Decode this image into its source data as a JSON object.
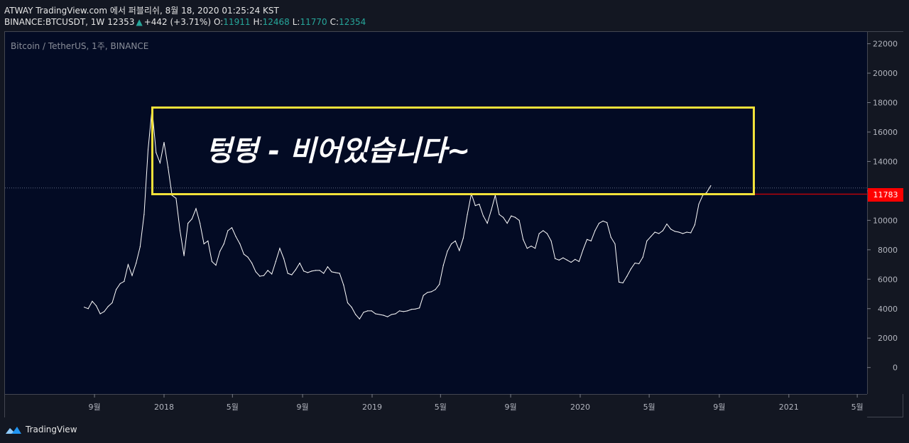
{
  "header": {
    "line1": "ATWAY TradingView.com 에서 퍼블리쉬, 8월 18, 2020 01:25:24 KST",
    "symbol": "BINANCE:BTCUSDT, 1W",
    "last": "12353",
    "change_arrow": "▲",
    "change": "+442 (+3.71%)",
    "o_label": "O:",
    "o_value": "11911",
    "h_label": "H:",
    "h_value": "12468",
    "l_label": "L:",
    "l_value": "11770",
    "c_label": "C:",
    "c_value": "12354"
  },
  "chart_label": "Bitcoin / TetherUS, 1주, BINANCE",
  "annotation": "텅텅 - 비어있습니다~",
  "price_tag": "11783",
  "brand": "TradingView",
  "colors": {
    "background": "#030b24",
    "line": "#ffffff",
    "annotation_box": "#f2e13a",
    "price_tag": "#ff0000",
    "up": "#26a69a"
  },
  "chart_data": {
    "type": "line",
    "title": "Bitcoin / TetherUS, 1주, BINANCE",
    "ylim": [
      -1800,
      22800
    ],
    "yticks": [
      0,
      2000,
      4000,
      6000,
      8000,
      10000,
      12000,
      14000,
      16000,
      18000,
      20000,
      22000
    ],
    "xticks": [
      {
        "label": "9월",
        "x": "2017-09"
      },
      {
        "label": "2018",
        "x": "2018-01"
      },
      {
        "label": "5월",
        "x": "2018-05"
      },
      {
        "label": "9월",
        "x": "2018-09"
      },
      {
        "label": "2019",
        "x": "2019-01"
      },
      {
        "label": "5월",
        "x": "2019-05"
      },
      {
        "label": "9월",
        "x": "2019-09"
      },
      {
        "label": "2020",
        "x": "2020-01"
      },
      {
        "label": "5월",
        "x": "2020-05"
      },
      {
        "label": "9월",
        "x": "2020-09"
      },
      {
        "label": "2021",
        "x": "2021-01"
      },
      {
        "label": "5월",
        "x": "2021-05"
      }
    ],
    "grid": false,
    "series": [
      {
        "values": [
          [
            "2017-08-14",
            4100
          ],
          [
            "2017-08-21",
            4000
          ],
          [
            "2017-08-28",
            4500
          ],
          [
            "2017-09-04",
            4200
          ],
          [
            "2017-09-11",
            3650
          ],
          [
            "2017-09-18",
            3800
          ],
          [
            "2017-09-25",
            4150
          ],
          [
            "2017-10-02",
            4400
          ],
          [
            "2017-10-09",
            5300
          ],
          [
            "2017-10-16",
            5700
          ],
          [
            "2017-10-23",
            5850
          ],
          [
            "2017-10-30",
            7000
          ],
          [
            "2017-11-06",
            6250
          ],
          [
            "2017-11-13",
            7100
          ],
          [
            "2017-11-20",
            8200
          ],
          [
            "2017-11-27",
            10400
          ],
          [
            "2017-12-04",
            14800
          ],
          [
            "2017-12-11",
            17600
          ],
          [
            "2017-12-18",
            14600
          ],
          [
            "2017-12-25",
            13900
          ],
          [
            "2018-01-01",
            15300
          ],
          [
            "2018-01-08",
            13600
          ],
          [
            "2018-01-15",
            11700
          ],
          [
            "2018-01-22",
            11500
          ],
          [
            "2018-01-29",
            9300
          ],
          [
            "2018-02-05",
            7600
          ],
          [
            "2018-02-12",
            9800
          ],
          [
            "2018-02-19",
            10100
          ],
          [
            "2018-02-26",
            10800
          ],
          [
            "2018-03-05",
            9800
          ],
          [
            "2018-03-12",
            8400
          ],
          [
            "2018-03-19",
            8600
          ],
          [
            "2018-03-26",
            7200
          ],
          [
            "2018-04-02",
            6950
          ],
          [
            "2018-04-09",
            7900
          ],
          [
            "2018-04-16",
            8400
          ],
          [
            "2018-04-23",
            9300
          ],
          [
            "2018-04-30",
            9500
          ],
          [
            "2018-05-07",
            8900
          ],
          [
            "2018-05-14",
            8400
          ],
          [
            "2018-05-21",
            7700
          ],
          [
            "2018-05-28",
            7500
          ],
          [
            "2018-06-04",
            7100
          ],
          [
            "2018-06-11",
            6500
          ],
          [
            "2018-06-18",
            6200
          ],
          [
            "2018-06-25",
            6250
          ],
          [
            "2018-07-02",
            6600
          ],
          [
            "2018-07-09",
            6350
          ],
          [
            "2018-07-16",
            7200
          ],
          [
            "2018-07-23",
            8100
          ],
          [
            "2018-07-30",
            7400
          ],
          [
            "2018-08-06",
            6400
          ],
          [
            "2018-08-13",
            6300
          ],
          [
            "2018-08-20",
            6650
          ],
          [
            "2018-08-27",
            7100
          ],
          [
            "2018-09-03",
            6550
          ],
          [
            "2018-09-10",
            6450
          ],
          [
            "2018-09-17",
            6550
          ],
          [
            "2018-09-24",
            6600
          ],
          [
            "2018-10-01",
            6600
          ],
          [
            "2018-10-08",
            6400
          ],
          [
            "2018-10-15",
            6850
          ],
          [
            "2018-10-22",
            6500
          ],
          [
            "2018-10-29",
            6450
          ],
          [
            "2018-11-05",
            6400
          ],
          [
            "2018-11-12",
            5600
          ],
          [
            "2018-11-19",
            4400
          ],
          [
            "2018-11-26",
            4100
          ],
          [
            "2018-12-03",
            3600
          ],
          [
            "2018-12-10",
            3300
          ],
          [
            "2018-12-17",
            3750
          ],
          [
            "2018-12-24",
            3850
          ],
          [
            "2018-12-31",
            3850
          ],
          [
            "2019-01-07",
            3650
          ],
          [
            "2019-01-14",
            3600
          ],
          [
            "2019-01-21",
            3550
          ],
          [
            "2019-01-28",
            3450
          ],
          [
            "2019-02-04",
            3600
          ],
          [
            "2019-02-11",
            3650
          ],
          [
            "2019-02-18",
            3850
          ],
          [
            "2019-02-25",
            3800
          ],
          [
            "2019-03-04",
            3850
          ],
          [
            "2019-03-11",
            3950
          ],
          [
            "2019-03-18",
            3980
          ],
          [
            "2019-03-25",
            4050
          ],
          [
            "2019-04-01",
            4900
          ],
          [
            "2019-04-08",
            5100
          ],
          [
            "2019-04-15",
            5150
          ],
          [
            "2019-04-22",
            5300
          ],
          [
            "2019-04-29",
            5650
          ],
          [
            "2019-05-06",
            6950
          ],
          [
            "2019-05-13",
            7900
          ],
          [
            "2019-05-20",
            8400
          ],
          [
            "2019-05-27",
            8600
          ],
          [
            "2019-06-03",
            7950
          ],
          [
            "2019-06-10",
            8800
          ],
          [
            "2019-06-17",
            10400
          ],
          [
            "2019-06-24",
            11800
          ],
          [
            "2019-07-01",
            11000
          ],
          [
            "2019-07-08",
            11100
          ],
          [
            "2019-07-15",
            10300
          ],
          [
            "2019-07-22",
            9800
          ],
          [
            "2019-07-29",
            10700
          ],
          [
            "2019-08-05",
            11700
          ],
          [
            "2019-08-12",
            10400
          ],
          [
            "2019-08-19",
            10200
          ],
          [
            "2019-08-26",
            9800
          ],
          [
            "2019-09-02",
            10300
          ],
          [
            "2019-09-09",
            10200
          ],
          [
            "2019-09-16",
            10000
          ],
          [
            "2019-09-23",
            8700
          ],
          [
            "2019-09-30",
            8100
          ],
          [
            "2019-10-07",
            8250
          ],
          [
            "2019-10-14",
            8100
          ],
          [
            "2019-10-21",
            9100
          ],
          [
            "2019-10-28",
            9300
          ],
          [
            "2019-11-04",
            9100
          ],
          [
            "2019-11-11",
            8600
          ],
          [
            "2019-11-18",
            7400
          ],
          [
            "2019-11-25",
            7300
          ],
          [
            "2019-12-02",
            7450
          ],
          [
            "2019-12-09",
            7300
          ],
          [
            "2019-12-16",
            7150
          ],
          [
            "2019-12-23",
            7350
          ],
          [
            "2019-12-30",
            7200
          ],
          [
            "2020-01-06",
            8000
          ],
          [
            "2020-01-13",
            8700
          ],
          [
            "2020-01-20",
            8600
          ],
          [
            "2020-01-27",
            9300
          ],
          [
            "2020-02-03",
            9800
          ],
          [
            "2020-02-10",
            9950
          ],
          [
            "2020-02-17",
            9850
          ],
          [
            "2020-02-24",
            8850
          ],
          [
            "2020-03-02",
            8400
          ],
          [
            "2020-03-09",
            5800
          ],
          [
            "2020-03-16",
            5750
          ],
          [
            "2020-03-23",
            6200
          ],
          [
            "2020-03-30",
            6700
          ],
          [
            "2020-04-06",
            7100
          ],
          [
            "2020-04-13",
            7050
          ],
          [
            "2020-04-20",
            7500
          ],
          [
            "2020-04-27",
            8600
          ],
          [
            "2020-05-04",
            8900
          ],
          [
            "2020-05-11",
            9200
          ],
          [
            "2020-05-18",
            9100
          ],
          [
            "2020-05-25",
            9300
          ],
          [
            "2020-06-01",
            9750
          ],
          [
            "2020-06-08",
            9400
          ],
          [
            "2020-06-15",
            9250
          ],
          [
            "2020-06-22",
            9200
          ],
          [
            "2020-06-29",
            9100
          ],
          [
            "2020-07-06",
            9200
          ],
          [
            "2020-07-13",
            9150
          ],
          [
            "2020-07-20",
            9700
          ],
          [
            "2020-07-27",
            11100
          ],
          [
            "2020-08-03",
            11700
          ],
          [
            "2020-08-10",
            11900
          ],
          [
            "2020-08-17",
            12350
          ]
        ]
      }
    ]
  }
}
